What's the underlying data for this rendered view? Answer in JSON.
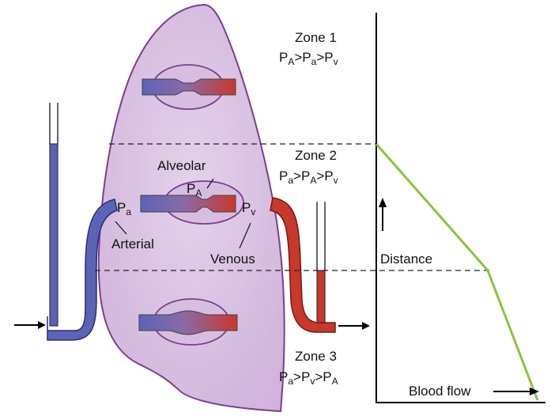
{
  "zones": [
    {
      "title": "Zone 1",
      "relation": [
        {
          "main": "P",
          "sub": "A"
        },
        {
          "op": ">"
        },
        {
          "main": "P",
          "sub": "a"
        },
        {
          "op": ">"
        },
        {
          "main": "P",
          "sub": "v"
        }
      ]
    },
    {
      "title": "Zone 2",
      "relation": [
        {
          "main": "P",
          "sub": "a"
        },
        {
          "op": ">"
        },
        {
          "main": "P",
          "sub": "A"
        },
        {
          "op": ">"
        },
        {
          "main": "P",
          "sub": "v"
        }
      ]
    },
    {
      "title": "Zone 3",
      "relation": [
        {
          "main": "P",
          "sub": "a"
        },
        {
          "op": ">"
        },
        {
          "main": "P",
          "sub": "v"
        },
        {
          "op": ">"
        },
        {
          "main": "P",
          "sub": "A"
        }
      ]
    }
  ],
  "labels": {
    "alveolar": "Alveolar",
    "arterial": "Arterial",
    "venous": "Venous",
    "pressure_main": "P",
    "pa_alveolar_sub": "A",
    "pa_arterial_sub": "a",
    "pv_venous_sub": "v"
  },
  "graph": {
    "x_label": "Blood flow",
    "y_label": "Distance"
  },
  "colors": {
    "lung_fill": "#d8bfe0",
    "lung_stroke": "#7a3f8f",
    "arterial": "#5b63b7",
    "venous": "#c8382b",
    "curve": "#8bc43f",
    "axis": "#000000"
  }
}
